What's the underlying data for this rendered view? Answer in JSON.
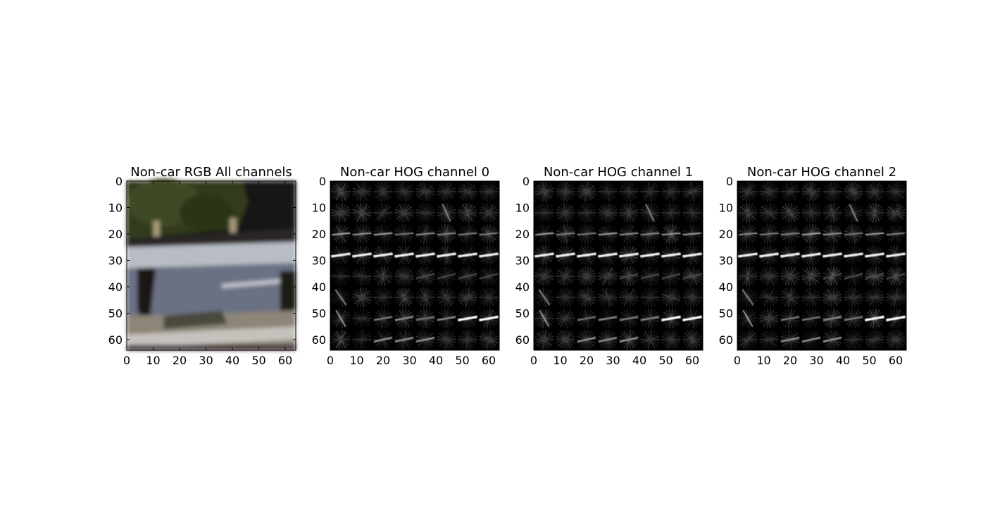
{
  "chart_data": [
    {
      "type": "image",
      "title": "Non-car RGB All channels",
      "image_kind": "rgb",
      "xlim": [
        0,
        63
      ],
      "ylim": [
        0,
        63
      ],
      "xticks": [
        0,
        10,
        20,
        30,
        40,
        50,
        60
      ],
      "yticks": [
        0,
        10,
        20,
        30,
        40,
        50,
        60
      ]
    },
    {
      "type": "image",
      "title": "Non-car HOG channel 0",
      "image_kind": "hog",
      "xlim": [
        0,
        63
      ],
      "ylim": [
        0,
        63
      ],
      "xticks": [
        0,
        10,
        20,
        30,
        40,
        50,
        60
      ],
      "yticks": [
        0,
        10,
        20,
        30,
        40,
        50,
        60
      ]
    },
    {
      "type": "image",
      "title": "Non-car HOG channel 1",
      "image_kind": "hog",
      "xlim": [
        0,
        63
      ],
      "ylim": [
        0,
        63
      ],
      "xticks": [
        0,
        10,
        20,
        30,
        40,
        50,
        60
      ],
      "yticks": [
        0,
        10,
        20,
        30,
        40,
        50,
        60
      ]
    },
    {
      "type": "image",
      "title": "Non-car HOG channel 2",
      "image_kind": "hog",
      "xlim": [
        0,
        63
      ],
      "ylim": [
        0,
        63
      ],
      "xticks": [
        0,
        10,
        20,
        30,
        40,
        50,
        60
      ],
      "yticks": [
        0,
        10,
        20,
        30,
        40,
        50,
        60
      ]
    }
  ]
}
